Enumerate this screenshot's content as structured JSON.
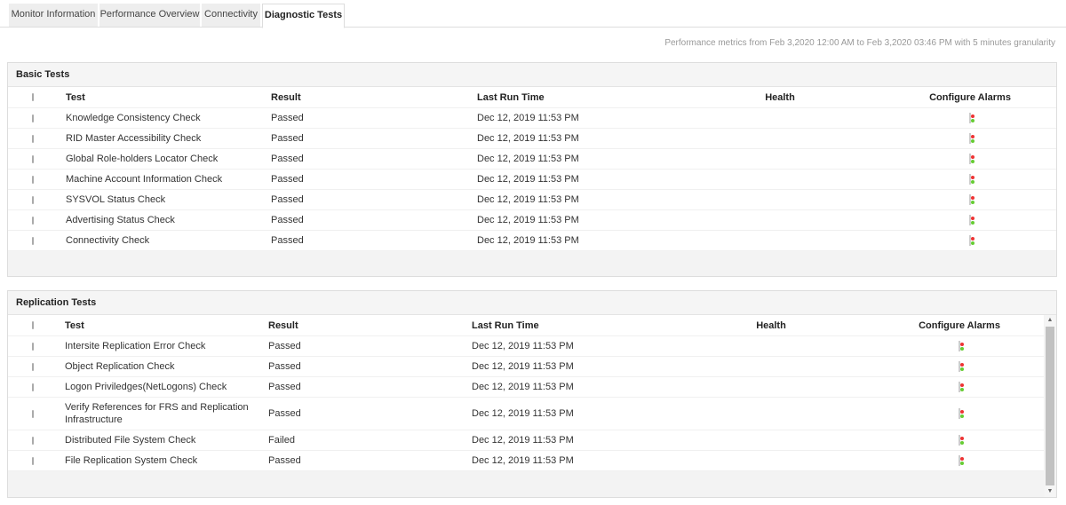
{
  "tabs": [
    {
      "label": "Monitor Information"
    },
    {
      "label": "Performance Overview"
    },
    {
      "label": "Connectivity"
    },
    {
      "label": "Diagnostic Tests",
      "active": true
    }
  ],
  "metrics_text": "Performance metrics from Feb 3,2020 12:00 AM to Feb 3,2020 03:46 PM with 5 minutes granularity",
  "columns": {
    "test": "Test",
    "result": "Result",
    "last_run": "Last Run Time",
    "health": "Health",
    "alarms": "Configure Alarms"
  },
  "health_colors": {
    "ok": "#7dbb14",
    "fail": "#e0231a"
  },
  "basic": {
    "title": "Basic Tests",
    "rows": [
      {
        "test": "Knowledge Consistency Check",
        "result": "Passed",
        "last_run": "Dec 12, 2019 11:53 PM",
        "health": "ok"
      },
      {
        "test": "RID Master Accessibility Check",
        "result": "Passed",
        "last_run": "Dec 12, 2019 11:53 PM",
        "health": "ok"
      },
      {
        "test": "Global Role-holders Locator Check",
        "result": "Passed",
        "last_run": "Dec 12, 2019 11:53 PM",
        "health": "ok"
      },
      {
        "test": "Machine Account Information Check",
        "result": "Passed",
        "last_run": "Dec 12, 2019 11:53 PM",
        "health": "ok"
      },
      {
        "test": "SYSVOL Status Check",
        "result": "Passed",
        "last_run": "Dec 12, 2019 11:53 PM",
        "health": "ok"
      },
      {
        "test": "Advertising Status Check",
        "result": "Passed",
        "last_run": "Dec 12, 2019 11:53 PM",
        "health": "ok"
      },
      {
        "test": "Connectivity Check",
        "result": "Passed",
        "last_run": "Dec 12, 2019 11:53 PM",
        "health": "ok"
      }
    ]
  },
  "replication": {
    "title": "Replication Tests",
    "rows": [
      {
        "test": "Intersite Replication Error Check",
        "result": "Passed",
        "last_run": "Dec 12, 2019 11:53 PM",
        "health": "ok"
      },
      {
        "test": "Object Replication Check",
        "result": "Passed",
        "last_run": "Dec 12, 2019 11:53 PM",
        "health": "ok"
      },
      {
        "test": "Logon Priviledges(NetLogons) Check",
        "result": "Passed",
        "last_run": "Dec 12, 2019 11:53 PM",
        "health": "ok"
      },
      {
        "test": "Verify References for FRS and Replication Infrastructure",
        "result": "Passed",
        "last_run": "Dec 12, 2019 11:53 PM",
        "health": "ok"
      },
      {
        "test": "Distributed File System Check",
        "result": "Failed",
        "last_run": "Dec 12, 2019 11:53 PM",
        "health": "fail"
      },
      {
        "test": "File Replication System Check",
        "result": "Passed",
        "last_run": "Dec 12, 2019 11:53 PM",
        "health": "ok"
      }
    ]
  }
}
